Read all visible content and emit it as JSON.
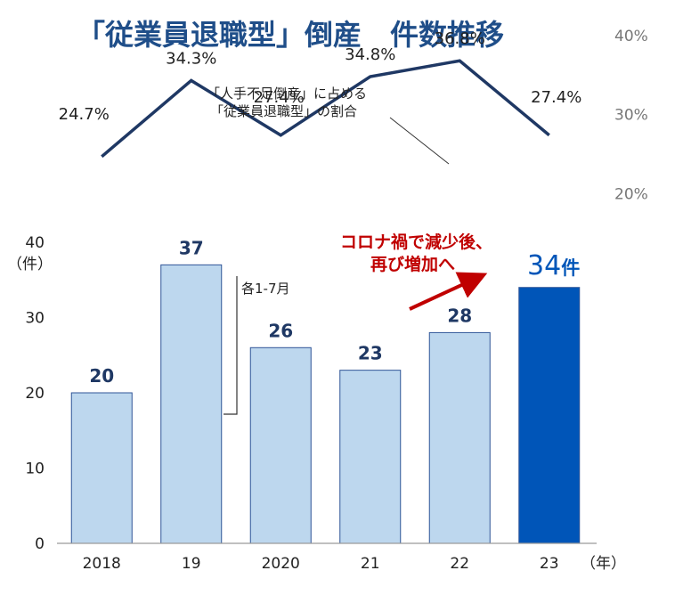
{
  "chart_data": {
    "type": "bar",
    "title": "「従業員退職型」倒産　件数推移",
    "categories": [
      "2018",
      "19",
      "2020",
      "21",
      "22",
      "23"
    ],
    "x_unit": "（年）",
    "series": [
      {
        "name": "件数",
        "type": "bar",
        "values": [
          20,
          37,
          26,
          23,
          28,
          34
        ],
        "value_labels": [
          "20",
          "37",
          "26",
          "23",
          "28",
          "34"
        ],
        "color": "#bdd7ee",
        "highlight_color": "#0055b8"
      },
      {
        "name": "「人手不足倒産」に占める「従業員退職型」の割合",
        "type": "line",
        "values": [
          24.7,
          34.3,
          27.4,
          34.8,
          36.8,
          27.4
        ],
        "value_labels": [
          "24.7%",
          "34.3%",
          "27.4%",
          "34.8%",
          "36.8%",
          "27.4%"
        ],
        "color": "#1f3864"
      }
    ],
    "ylim": [
      0,
      40
    ],
    "yticks": [
      "0",
      "10",
      "20",
      "30",
      "40"
    ],
    "ylabel": "（件）",
    "y2ticks": [
      "20%",
      "30%",
      "40%"
    ],
    "y2lim": [
      15,
      42
    ],
    "highlight": {
      "index": 5,
      "label": "34",
      "unit": "件"
    },
    "annotations": {
      "line_note": [
        "「人手不足倒産」に占める",
        "「従業員退職型」の割合"
      ],
      "bracket_note": "各1-7月",
      "trend_note": [
        "コロナ禍で減少後、",
        "再び増加へ"
      ]
    },
    "colors": {
      "title": "#1f4e89",
      "bar": "#bdd7ee",
      "bar_highlight": "#0055b8",
      "line": "#1f3864",
      "arrow": "#c00000"
    }
  }
}
